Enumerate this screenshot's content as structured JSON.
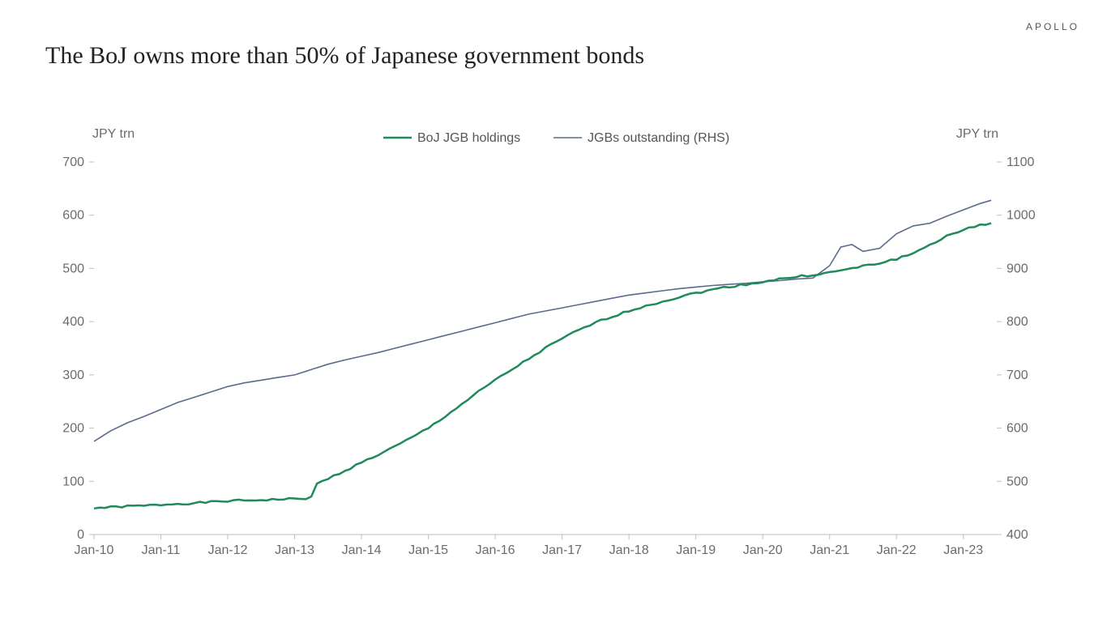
{
  "brand": "APOLLO",
  "title": "The BoJ owns more than 50% of Japanese government bonds",
  "chart": {
    "type": "line",
    "background_color": "#ffffff",
    "axis_color": "#bfbfbf",
    "tick_color": "#bfbfbf",
    "label_color": "#6b6b6b",
    "title_fontsize": 30,
    "label_fontsize": 16,
    "left_axis": {
      "title": "JPY trn",
      "min": 0,
      "max": 700,
      "tick_step": 100
    },
    "right_axis": {
      "title": "JPY trn",
      "min": 400,
      "max": 1100,
      "tick_step": 100
    },
    "x_axis": {
      "tick_labels": [
        "Jan-10",
        "Jan-11",
        "Jan-12",
        "Jan-13",
        "Jan-14",
        "Jan-15",
        "Jan-16",
        "Jan-17",
        "Jan-18",
        "Jan-19",
        "Jan-20",
        "Jan-21",
        "Jan-22",
        "Jan-23"
      ]
    },
    "series": [
      {
        "name": "BoJ JGB holdings",
        "axis": "left",
        "color": "#1f8a5a",
        "line_width": 2.5,
        "jitter": true,
        "data": [
          [
            0,
            50
          ],
          [
            3,
            51
          ],
          [
            6,
            53
          ],
          [
            9,
            54
          ],
          [
            12,
            56
          ],
          [
            15,
            58
          ],
          [
            18,
            59
          ],
          [
            21,
            61
          ],
          [
            24,
            63
          ],
          [
            27,
            64
          ],
          [
            30,
            65
          ],
          [
            33,
            66
          ],
          [
            36,
            67
          ],
          [
            38,
            68
          ],
          [
            39,
            70
          ],
          [
            40,
            95
          ],
          [
            42,
            105
          ],
          [
            45,
            120
          ],
          [
            48,
            135
          ],
          [
            51,
            150
          ],
          [
            54,
            165
          ],
          [
            57,
            182
          ],
          [
            60,
            200
          ],
          [
            63,
            222
          ],
          [
            66,
            245
          ],
          [
            69,
            268
          ],
          [
            72,
            290
          ],
          [
            75,
            310
          ],
          [
            78,
            330
          ],
          [
            81,
            350
          ],
          [
            84,
            368
          ],
          [
            87,
            384
          ],
          [
            90,
            398
          ],
          [
            93,
            410
          ],
          [
            96,
            420
          ],
          [
            99,
            430
          ],
          [
            102,
            438
          ],
          [
            105,
            446
          ],
          [
            108,
            454
          ],
          [
            111,
            460
          ],
          [
            114,
            466
          ],
          [
            117,
            470
          ],
          [
            120,
            475
          ],
          [
            123,
            480
          ],
          [
            126,
            484
          ],
          [
            129,
            488
          ],
          [
            132,
            492
          ],
          [
            135,
            498
          ],
          [
            138,
            504
          ],
          [
            141,
            510
          ],
          [
            144,
            518
          ],
          [
            147,
            528
          ],
          [
            150,
            545
          ],
          [
            153,
            560
          ],
          [
            156,
            572
          ],
          [
            159,
            582
          ],
          [
            161,
            585
          ]
        ]
      },
      {
        "name": "JGBs outstanding (RHS)",
        "axis": "right",
        "color": "#5b6b8c",
        "line_width": 1.6,
        "jitter": false,
        "data": [
          [
            0,
            575
          ],
          [
            3,
            595
          ],
          [
            6,
            610
          ],
          [
            9,
            622
          ],
          [
            12,
            635
          ],
          [
            15,
            648
          ],
          [
            18,
            658
          ],
          [
            21,
            668
          ],
          [
            24,
            678
          ],
          [
            27,
            685
          ],
          [
            30,
            690
          ],
          [
            33,
            695
          ],
          [
            36,
            700
          ],
          [
            39,
            710
          ],
          [
            42,
            720
          ],
          [
            45,
            728
          ],
          [
            48,
            735
          ],
          [
            51,
            742
          ],
          [
            54,
            750
          ],
          [
            57,
            758
          ],
          [
            60,
            766
          ],
          [
            63,
            774
          ],
          [
            66,
            782
          ],
          [
            69,
            790
          ],
          [
            72,
            798
          ],
          [
            75,
            806
          ],
          [
            78,
            814
          ],
          [
            81,
            820
          ],
          [
            84,
            826
          ],
          [
            87,
            832
          ],
          [
            90,
            838
          ],
          [
            93,
            844
          ],
          [
            96,
            850
          ],
          [
            99,
            854
          ],
          [
            102,
            858
          ],
          [
            105,
            862
          ],
          [
            108,
            865
          ],
          [
            111,
            868
          ],
          [
            114,
            870
          ],
          [
            117,
            872
          ],
          [
            120,
            875
          ],
          [
            123,
            877
          ],
          [
            126,
            880
          ],
          [
            129,
            882
          ],
          [
            132,
            905
          ],
          [
            134,
            940
          ],
          [
            136,
            945
          ],
          [
            138,
            932
          ],
          [
            141,
            938
          ],
          [
            144,
            965
          ],
          [
            147,
            980
          ],
          [
            150,
            985
          ],
          [
            153,
            998
          ],
          [
            156,
            1010
          ],
          [
            159,
            1022
          ],
          [
            161,
            1028
          ]
        ]
      }
    ]
  }
}
